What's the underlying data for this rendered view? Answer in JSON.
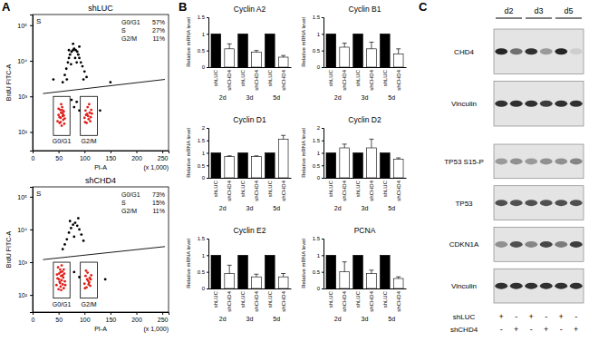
{
  "chart_data": [
    {
      "type": "scatter",
      "panel_label": "A",
      "title": "shLUC",
      "x_label": "PI-A",
      "y_label": "BrdU FITC-A",
      "annotations": [
        "(x 1,000)"
      ],
      "log": "y",
      "xlim": [
        0,
        262
      ],
      "xticks": [
        0,
        50,
        100,
        150,
        200,
        250
      ],
      "ylim": [
        30,
        200000
      ],
      "yticks": [
        {
          "value": 100,
          "label": "10²"
        },
        {
          "value": 1000,
          "label": "10³"
        },
        {
          "value": 10000,
          "label": "10⁴"
        },
        {
          "value": 100000,
          "label": "10⁵"
        }
      ],
      "series": [
        {
          "color": "#e0201b",
          "x": [
            48,
            50,
            52,
            53,
            54,
            55,
            56,
            57,
            58,
            59,
            60,
            61,
            55,
            52,
            58,
            50,
            62,
            54,
            57,
            60,
            100,
            102,
            104,
            105,
            106,
            108,
            110,
            111,
            113,
            107,
            103,
            109,
            112,
            101,
            114
          ],
          "values": [
            200,
            300,
            180,
            420,
            250,
            350,
            150,
            500,
            280,
            220,
            380,
            170,
            600,
            260,
            330,
            450,
            240,
            190,
            410,
            290,
            250,
            400,
            180,
            320,
            500,
            230,
            350,
            200,
            420,
            280,
            300,
            600,
            260,
            190,
            330
          ]
        },
        {
          "color": "#000000",
          "x": [
            58,
            62,
            65,
            68,
            70,
            72,
            75,
            78,
            80,
            83,
            86,
            88,
            90,
            93,
            96,
            100,
            104,
            74,
            82,
            90,
            70,
            85,
            66,
            98,
            78,
            75,
            80,
            85,
            130,
            90,
            40,
            150
          ],
          "values": [
            2500,
            4000,
            6000,
            9000,
            12000,
            15000,
            18000,
            20000,
            22000,
            20000,
            18000,
            15000,
            12000,
            9000,
            7000,
            5000,
            3500,
            8000,
            12000,
            25000,
            20000,
            9000,
            3000,
            3000,
            30000,
            800,
            500,
            700,
            400,
            400,
            3000,
            2500
          ]
        }
      ],
      "gates": [
        {
          "label": "G0/G1",
          "x": [
            40,
            72
          ],
          "y": [
            80,
            1000
          ]
        },
        {
          "label": "G2/M",
          "x": [
            92,
            125
          ],
          "y": [
            80,
            1000
          ]
        }
      ],
      "threshold": {
        "label": "S",
        "x": [
          20,
          255
        ],
        "y": [
          1200,
          3000
        ]
      },
      "stats": [
        {
          "label": "G0/G1",
          "text": "57%"
        },
        {
          "label": "S",
          "text": "27%"
        },
        {
          "label": "G2/M",
          "text": "11%"
        }
      ]
    },
    {
      "type": "scatter",
      "title": "shCHD4",
      "x_label": "PI-A",
      "y_label": "BrdU FITC-A",
      "annotations": [
        "(x 1,000)"
      ],
      "log": "y",
      "xlim": [
        0,
        262
      ],
      "xticks": [
        0,
        50,
        100,
        150,
        200,
        250
      ],
      "ylim": [
        30,
        200000
      ],
      "yticks": [
        {
          "value": 100,
          "label": "10²"
        },
        {
          "value": 1000,
          "label": "10³"
        },
        {
          "value": 10000,
          "label": "10⁴"
        },
        {
          "value": 100000,
          "label": "10⁵"
        }
      ],
      "series": [
        {
          "color": "#e0201b",
          "x": [
            46,
            48,
            50,
            51,
            52,
            53,
            54,
            55,
            56,
            57,
            58,
            59,
            60,
            61,
            62,
            49,
            53,
            56,
            58,
            55,
            51,
            60,
            47,
            63,
            54,
            100,
            102,
            104,
            105,
            106,
            108,
            110,
            111,
            113,
            107,
            103,
            109,
            112,
            101
          ],
          "values": [
            200,
            320,
            150,
            450,
            250,
            600,
            180,
            380,
            280,
            520,
            210,
            340,
            160,
            450,
            260,
            700,
            230,
            800,
            400,
            140,
            300,
            600,
            420,
            200,
            500,
            220,
            380,
            170,
            300,
            480,
            210,
            330,
            190,
            400,
            270,
            550,
            240,
            300,
            160
          ]
        },
        {
          "color": "#000000",
          "x": [
            58,
            62,
            66,
            70,
            74,
            78,
            82,
            86,
            90,
            94,
            98,
            80,
            72,
            88,
            80,
            90,
            140
          ],
          "values": [
            2500,
            3500,
            5000,
            8000,
            11000,
            14000,
            16000,
            13000,
            10000,
            7000,
            4500,
            6000,
            18000,
            22000,
            500,
            350,
            300
          ]
        }
      ],
      "gates": [
        {
          "label": "G0/G1",
          "x": [
            40,
            72
          ],
          "y": [
            80,
            1000
          ]
        },
        {
          "label": "G2/M",
          "x": [
            92,
            125
          ],
          "y": [
            80,
            1000
          ]
        }
      ],
      "threshold": {
        "label": "S",
        "x": [
          20,
          255
        ],
        "y": [
          1200,
          3000
        ]
      },
      "stats": [
        {
          "label": "G0/G1",
          "text": "73%"
        },
        {
          "label": "S",
          "text": "15%"
        },
        {
          "label": "G2/M",
          "text": "11%"
        }
      ]
    },
    {
      "type": "bar",
      "panel_label": "B",
      "title": "Cyclin A2",
      "y_label": "Relative mRNA level",
      "categories": [
        "shLUC",
        "shCHD4",
        "shLUC",
        "shCHD4",
        "shLUC",
        "shCHD4"
      ],
      "groups": [
        "2d",
        "3d",
        "5d"
      ],
      "values": [
        1,
        0.55,
        1,
        0.45,
        1,
        0.3
      ],
      "errors": [
        null,
        0.15,
        null,
        0.05,
        null,
        0.05
      ],
      "colors": [
        "#000000",
        "#ffffff",
        "#000000",
        "#ffffff",
        "#000000",
        "#ffffff"
      ],
      "ylim": [
        0,
        1.5
      ],
      "yticks": [
        0,
        0.5,
        1,
        1.5
      ]
    },
    {
      "type": "bar",
      "title": "Cyclin B1",
      "y_label": "Relative mRNA level",
      "categories": [
        "shLUC",
        "shCHD4",
        "shLUC",
        "shCHD4",
        "shLUC",
        "shCHD4"
      ],
      "groups": [
        "2d",
        "3d",
        "5d"
      ],
      "values": [
        1,
        0.6,
        1,
        0.55,
        1,
        0.4
      ],
      "errors": [
        null,
        0.12,
        null,
        0.2,
        null,
        0.15
      ],
      "colors": [
        "#000000",
        "#ffffff",
        "#000000",
        "#ffffff",
        "#000000",
        "#ffffff"
      ],
      "ylim": [
        0,
        1.5
      ],
      "yticks": [
        0,
        0.5,
        1,
        1.5
      ]
    },
    {
      "type": "bar",
      "title": "Cyclin D1",
      "y_label": "Relative mRNA level",
      "categories": [
        "shLUC",
        "shCHD4",
        "shLUC",
        "shCHD4",
        "shLUC",
        "shCHD4"
      ],
      "groups": [
        "2d",
        "3d",
        "5d"
      ],
      "values": [
        1,
        0.85,
        1,
        0.85,
        1,
        1.55
      ],
      "errors": [
        null,
        0.03,
        null,
        0.03,
        null,
        0.15
      ],
      "colors": [
        "#000000",
        "#ffffff",
        "#000000",
        "#ffffff",
        "#000000",
        "#ffffff"
      ],
      "ylim": [
        0,
        2
      ],
      "yticks": [
        0,
        0.5,
        1,
        1.5,
        2
      ]
    },
    {
      "type": "bar",
      "title": "Cyclin D2",
      "y_label": "Relative mRNA level",
      "categories": [
        "shLUC",
        "shCHD4",
        "shLUC",
        "shCHD4",
        "shLUC",
        "shCHD4"
      ],
      "groups": [
        "2d",
        "3d",
        "5d"
      ],
      "values": [
        1,
        1.2,
        1,
        1.2,
        1,
        0.75
      ],
      "errors": [
        null,
        0.15,
        null,
        0.35,
        null,
        0.05
      ],
      "colors": [
        "#000000",
        "#ffffff",
        "#000000",
        "#ffffff",
        "#000000",
        "#ffffff"
      ],
      "ylim": [
        0,
        2
      ],
      "yticks": [
        0,
        0.5,
        1,
        1.5,
        2
      ]
    },
    {
      "type": "bar",
      "title": "Cyclin E2",
      "y_label": "Relative mRNA level",
      "categories": [
        "shLUC",
        "shCHD4",
        "shLUC",
        "shCHD4",
        "shLUC",
        "shCHD4"
      ],
      "groups": [
        "2d",
        "3d",
        "5d"
      ],
      "values": [
        1,
        0.45,
        1,
        0.35,
        1,
        0.35
      ],
      "errors": [
        null,
        0.25,
        null,
        0.08,
        null,
        0.1
      ],
      "colors": [
        "#000000",
        "#ffffff",
        "#000000",
        "#ffffff",
        "#000000",
        "#ffffff"
      ],
      "ylim": [
        0,
        1.5
      ],
      "yticks": [
        0,
        0.5,
        1,
        1.5
      ]
    },
    {
      "type": "bar",
      "title": "PCNA",
      "y_label": "Relative mRNA level",
      "categories": [
        "shLUC",
        "shCHD4",
        "shLUC",
        "shCHD4",
        "shLUC",
        "shCHD4"
      ],
      "groups": [
        "2d",
        "3d",
        "5d"
      ],
      "values": [
        1,
        0.5,
        1,
        0.45,
        1,
        0.3
      ],
      "errors": [
        null,
        0.3,
        null,
        0.1,
        null,
        0.05
      ],
      "colors": [
        "#000000",
        "#ffffff",
        "#000000",
        "#ffffff",
        "#000000",
        "#ffffff"
      ],
      "ylim": [
        0,
        1.5
      ],
      "yticks": [
        0,
        0.5,
        1,
        1.5
      ]
    },
    {
      "type": "blot",
      "panel_label": "C",
      "groups": [
        "d2",
        "d3",
        "d5"
      ],
      "blots": [
        {
          "rows": [
            {
              "label": "CHD4",
              "values": [
                0.9,
                0.55,
                0.85,
                0.35,
                0.9,
                0.1
              ]
            },
            {
              "label": "Vinculin",
              "values": [
                0.85,
                0.85,
                0.85,
                0.8,
                0.85,
                0.85
              ]
            }
          ]
        },
        {
          "rows": [
            {
              "label": "TP53 S15-P",
              "values": [
                0.35,
                0.4,
                0.35,
                0.4,
                0.4,
                0.45
              ]
            },
            {
              "label": "TP53",
              "values": [
                0.7,
                0.7,
                0.7,
                0.7,
                0.7,
                0.7
              ]
            },
            {
              "label": "CDKN1A",
              "values": [
                0.4,
                0.7,
                0.45,
                0.75,
                0.5,
                0.8
              ]
            },
            {
              "label": "Vinculin",
              "values": [
                0.85,
                0.85,
                0.85,
                0.85,
                0.85,
                0.85
              ]
            }
          ]
        }
      ],
      "conditions": [
        {
          "label": "shLUC",
          "signs": [
            "+",
            "-",
            "+",
            "-",
            "+",
            "-"
          ]
        },
        {
          "label": "shCHD4",
          "signs": [
            "-",
            "+",
            "-",
            "+",
            "-",
            "+"
          ]
        }
      ]
    }
  ]
}
